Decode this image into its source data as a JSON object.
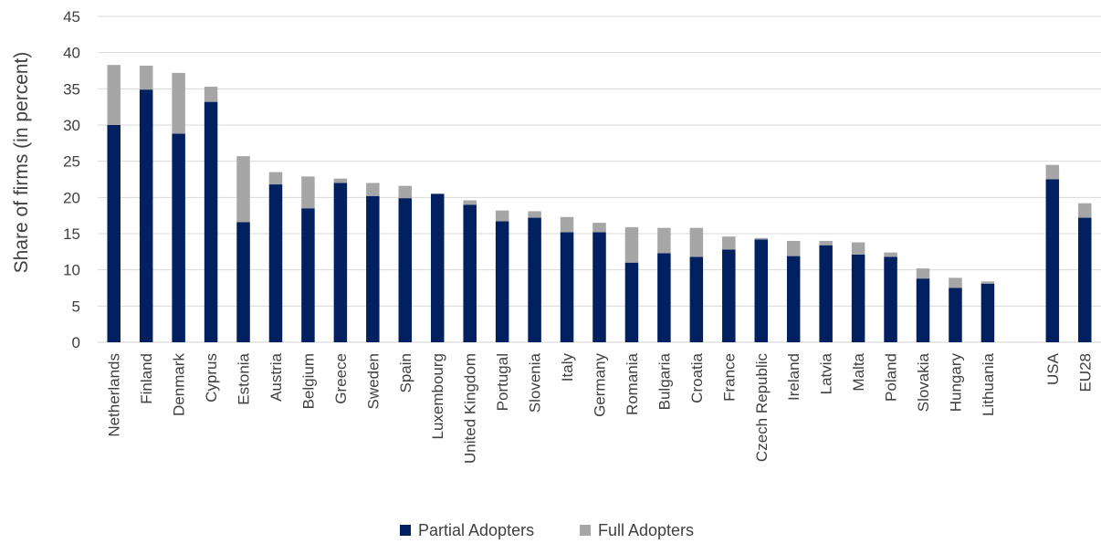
{
  "chart_data": {
    "type": "bar",
    "stacked": true,
    "ylabel": "Share of firms (in percent)",
    "xlabel": "",
    "ylim": [
      0,
      45
    ],
    "yticks": [
      0,
      5,
      10,
      15,
      20,
      25,
      30,
      35,
      40,
      45
    ],
    "grid": true,
    "legend_position": "bottom",
    "categories": [
      "Netherlands",
      "Finland",
      "Denmark",
      "Cyprus",
      "Estonia",
      "Austria",
      "Belgium",
      "Greece",
      "Sweden",
      "Spain",
      "Luxembourg",
      "United Kingdom",
      "Portugal",
      "Slovenia",
      "Italy",
      "Germany",
      "Romania",
      "Bulgaria",
      "Croatia",
      "France",
      "Czech Republic",
      "Ireland",
      "Latvia",
      "Malta",
      "Poland",
      "Slovakia",
      "Hungary",
      "Lithuania",
      "",
      "USA",
      "EU28"
    ],
    "series": [
      {
        "name": "Partial Adopters",
        "color": "#002060",
        "values": [
          30.0,
          34.9,
          28.8,
          33.2,
          16.6,
          21.8,
          18.5,
          22.0,
          20.2,
          19.9,
          20.5,
          19.0,
          16.7,
          17.2,
          15.2,
          15.2,
          11.0,
          12.3,
          11.8,
          12.8,
          14.2,
          11.9,
          13.4,
          12.1,
          11.8,
          8.8,
          7.5,
          8.1,
          null,
          22.5,
          17.2
        ]
      },
      {
        "name": "Full Adopters",
        "color": "#a6a6a6",
        "values": [
          8.3,
          3.3,
          8.4,
          2.1,
          9.1,
          1.7,
          4.4,
          0.6,
          1.8,
          1.7,
          0.0,
          0.6,
          1.5,
          0.9,
          2.1,
          1.3,
          4.9,
          3.5,
          4.0,
          1.8,
          0.2,
          2.1,
          0.6,
          1.7,
          0.6,
          1.4,
          1.4,
          0.3,
          null,
          2.0,
          2.0
        ]
      }
    ]
  },
  "colors": {
    "axis": "#d9d9d9",
    "grid": "#d9d9d9",
    "text": "#404040"
  }
}
